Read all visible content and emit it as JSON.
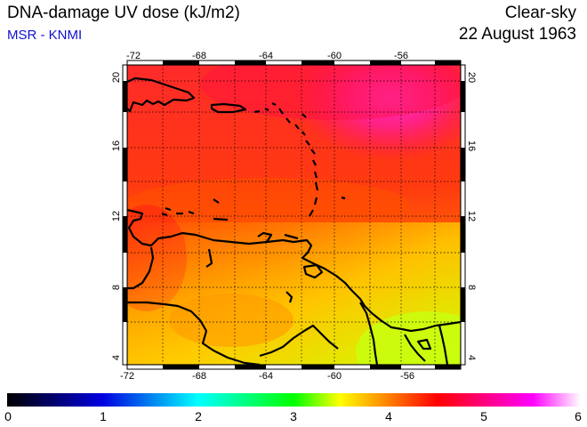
{
  "header": {
    "title": "DNA-damage UV dose (kJ/m2)",
    "source": "MSR - KNMI",
    "sky_condition": "Clear-sky",
    "date": "22 August 1963"
  },
  "map": {
    "lon_ticks": [
      "-72",
      "-68",
      "-64",
      "-60",
      "-56"
    ],
    "lat_ticks": [
      "20",
      "16",
      "12",
      "8",
      "4"
    ]
  },
  "colorbar": {
    "labels": [
      "0",
      "1",
      "2",
      "3",
      "4",
      "5",
      "6"
    ]
  }
}
